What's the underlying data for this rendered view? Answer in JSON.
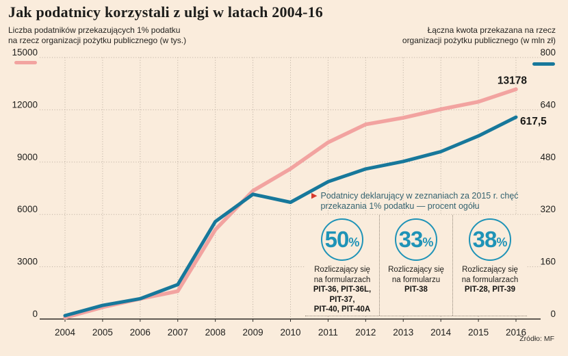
{
  "page": {
    "background": "#FAECDC",
    "source": "Źródło: MF"
  },
  "colors": {
    "background": "#FAECDC",
    "ink": "#1D1D1B",
    "grid": "#B8AB9D",
    "baseline": "#2E2B27",
    "pink_series": "#F2A3A0",
    "teal_series": "#17789B",
    "accent_teal": "#1F93B7",
    "annotation_text": "#33626F",
    "marker_red": "#D5392E"
  },
  "header": {
    "title": "Jak podatnicy korzystali z ulgi w latach 2004-16",
    "left_caption_line1": "Liczba podatników przekazujących 1% podatku",
    "left_caption_line2": "na rzecz organizacji pożytku publicznego (w tys.)",
    "right_caption_line1": "Łączna kwota przekazana na rzecz",
    "right_caption_line2": "organizacji pożytku publicznego (w mln zł)"
  },
  "chart_data": {
    "type": "line",
    "x": [
      2004,
      2005,
      2006,
      2007,
      2008,
      2009,
      2010,
      2011,
      2012,
      2013,
      2014,
      2015,
      2016
    ],
    "series": [
      {
        "name": "Liczba podatników przekazujących 1% podatku (w tys.)",
        "axis": "left",
        "color": "#F2A3A0",
        "stroke_width": 5.5,
        "values": [
          80,
          680,
          1160,
          1600,
          5130,
          7350,
          8620,
          10130,
          11165,
          11540,
          12030,
          12460,
          13178
        ],
        "end_label": "13178"
      },
      {
        "name": "Łączna kwota przekazana na rzecz organizacji pożytku publicznego (w mln zł)",
        "axis": "right",
        "color": "#17789B",
        "stroke_width": 5,
        "values": [
          10.4,
          41.6,
          62.3,
          105.4,
          298.3,
          381.5,
          357,
          420,
          459,
          482,
          512,
          560,
          617.5
        ],
        "end_label": "617,5"
      }
    ],
    "left_axis": {
      "max": 15000,
      "ticks": [
        15000,
        12000,
        9000,
        6000,
        3000,
        0
      ]
    },
    "right_axis": {
      "max": 800,
      "ticks": [
        800,
        640,
        480,
        320,
        160,
        0
      ]
    },
    "grid": true,
    "legend_position": "top-corners"
  },
  "annotation": {
    "marker": "▶",
    "line1": "Podatnicy deklarujący w zeznaniach za 2015 r. chęć",
    "line2": "przekazania 1% podatku — procent ogółu",
    "stats": [
      {
        "value": "50",
        "unit": "%",
        "caption1": "Rozliczający się",
        "caption2": "na formularzach",
        "forms1": "PIT-36, PIT-36L,",
        "forms2": "PIT-37,",
        "forms3": "PIT-40, PIT-40A"
      },
      {
        "value": "33",
        "unit": "%",
        "caption1": "Rozliczający się",
        "caption2": "na formularzu",
        "forms1": "PIT-38",
        "forms2": "",
        "forms3": ""
      },
      {
        "value": "38",
        "unit": "%",
        "caption1": "Rozliczający się",
        "caption2": "na formularzach",
        "forms1": "PIT-28, PIT-39",
        "forms2": "",
        "forms3": ""
      }
    ]
  }
}
